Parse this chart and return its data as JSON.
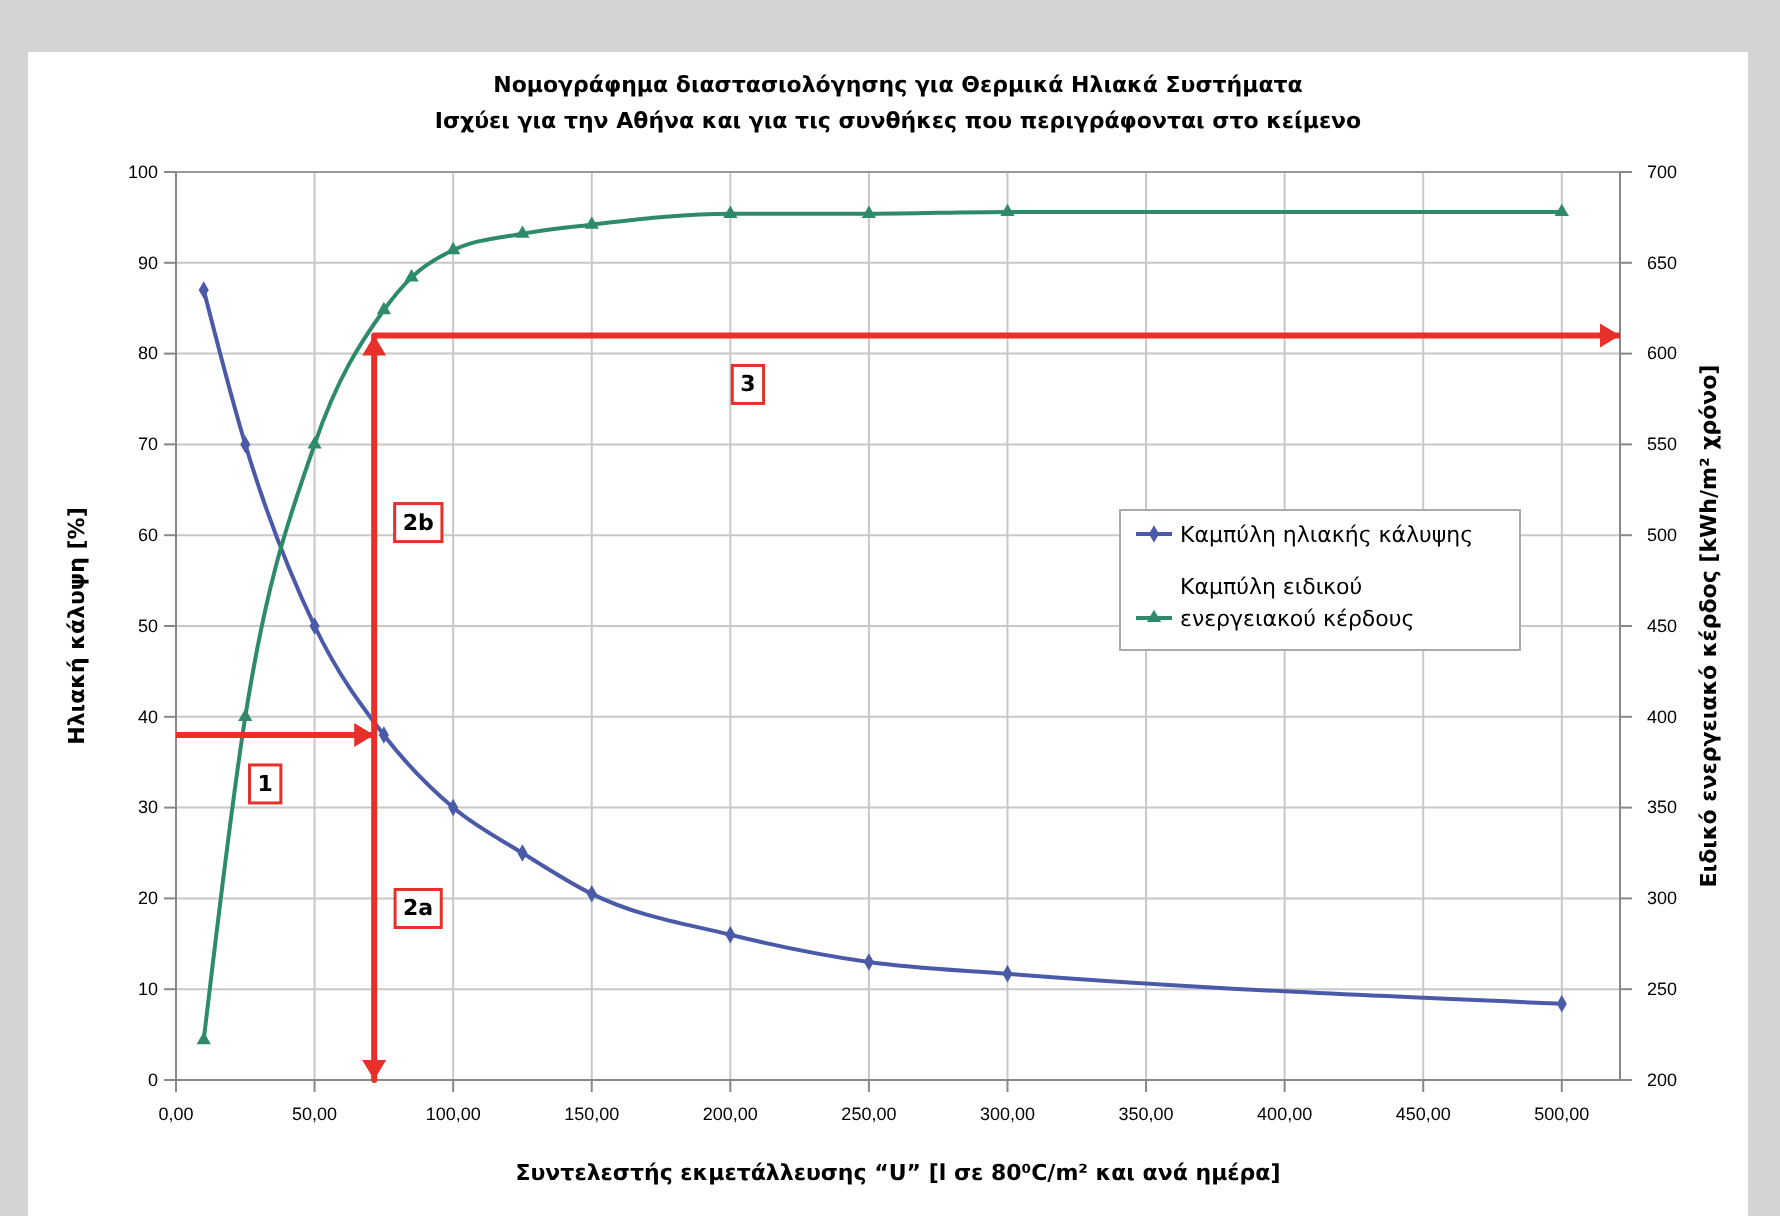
{
  "chart_data": {
    "type": "line",
    "title": "Νομογράφημα διαστασιολόγησης για Θερμικά Ηλιακά Συστήματα",
    "subtitle": "Ισχύει για την Αθήνα και για τις συνθήκες που περιγράφονται στο κείμενο",
    "xlabel": "Συντελεστής εκμετάλλευσης “U” [l σε 80⁰C/m² και ανά ημέρα]",
    "ylabel": "Ηλιακή κάλυψη [%]",
    "y2label": "Ειδικό ενεργειακό κέρδος [kWh/m² χρόνο]",
    "xlim": [
      0,
      521
    ],
    "xticks": [
      {
        "value": 0,
        "label": "0,00"
      },
      {
        "value": 50,
        "label": "50,00"
      },
      {
        "value": 100,
        "label": "100,00"
      },
      {
        "value": 150,
        "label": "150,00"
      },
      {
        "value": 200,
        "label": "200,00"
      },
      {
        "value": 250,
        "label": "250,00"
      },
      {
        "value": 300,
        "label": "300,00"
      },
      {
        "value": 350,
        "label": "350,00"
      },
      {
        "value": 400,
        "label": "400,00"
      },
      {
        "value": 450,
        "label": "450,00"
      },
      {
        "value": 500,
        "label": "500,00"
      }
    ],
    "ylim": [
      0,
      100
    ],
    "yticks": [
      0,
      10,
      20,
      30,
      40,
      50,
      60,
      70,
      80,
      90,
      100
    ],
    "y2lim": [
      200,
      700
    ],
    "y2ticks": [
      200,
      250,
      300,
      350,
      400,
      450,
      500,
      550,
      600,
      650,
      700
    ],
    "grid": true,
    "legend": "right",
    "line_style": "solid",
    "series": [
      {
        "name": "Καμπύλη ηλιακής κάλυψης",
        "color": "#4a5aa8",
        "marker": "diamond",
        "x": [
          10,
          25,
          50,
          75,
          100,
          125,
          150,
          200,
          250,
          300,
          500
        ],
        "values": [
          87,
          70,
          50,
          38,
          30,
          25,
          20.5,
          16,
          13,
          11.7,
          8.4
        ]
      },
      {
        "name": "Καμπύλη ειδικού ενεργειακού κέρδους",
        "color": "#2e8b6a",
        "marker": "triangle",
        "axis": "y2",
        "x": [
          10,
          25,
          50,
          75,
          85,
          100,
          125,
          150,
          200,
          250,
          300,
          500
        ],
        "values": [
          222,
          400,
          550,
          624,
          642,
          657,
          666,
          671,
          677,
          677,
          678,
          678
        ]
      },
      {
        "color": "#e8302a",
        "marker": "none",
        "x": [
          0,
          71.5,
          71.5,
          71.5,
          521
        ],
        "values": [
          38,
          38,
          0,
          82,
          82
        ]
      }
    ],
    "annotations": [
      "1",
      "2a",
      "2b",
      "3"
    ]
  }
}
